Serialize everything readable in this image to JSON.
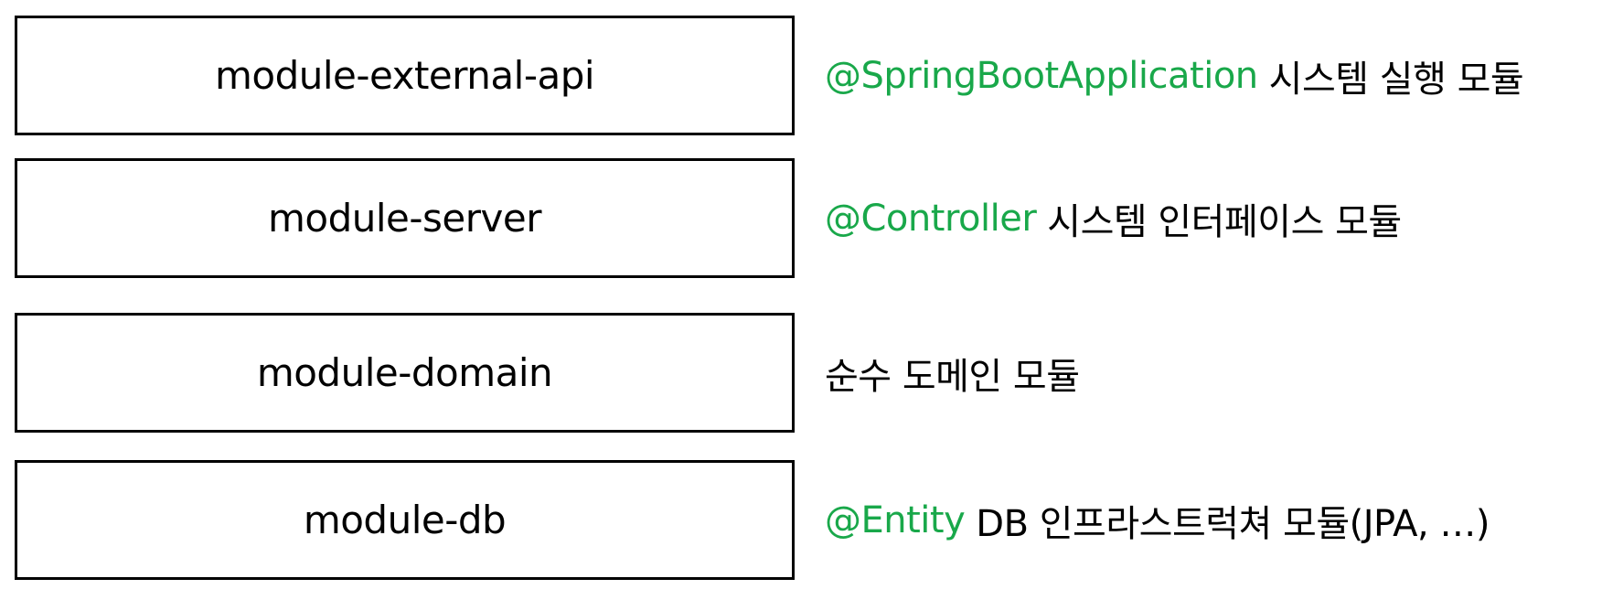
{
  "accent_color": "#19a84a",
  "modules": [
    {
      "name": "module-external-api",
      "annotation": "@SpringBootApplication",
      "description": "시스템 실행 모듈"
    },
    {
      "name": "module-server",
      "annotation": "@Controller",
      "description": "시스템 인터페이스 모듈"
    },
    {
      "name": "module-domain",
      "annotation": "",
      "description": "순수 도메인 모듈"
    },
    {
      "name": "module-db",
      "annotation": "@Entity",
      "description": "DB 인프라스트럭쳐 모듈(JPA, …)"
    }
  ]
}
